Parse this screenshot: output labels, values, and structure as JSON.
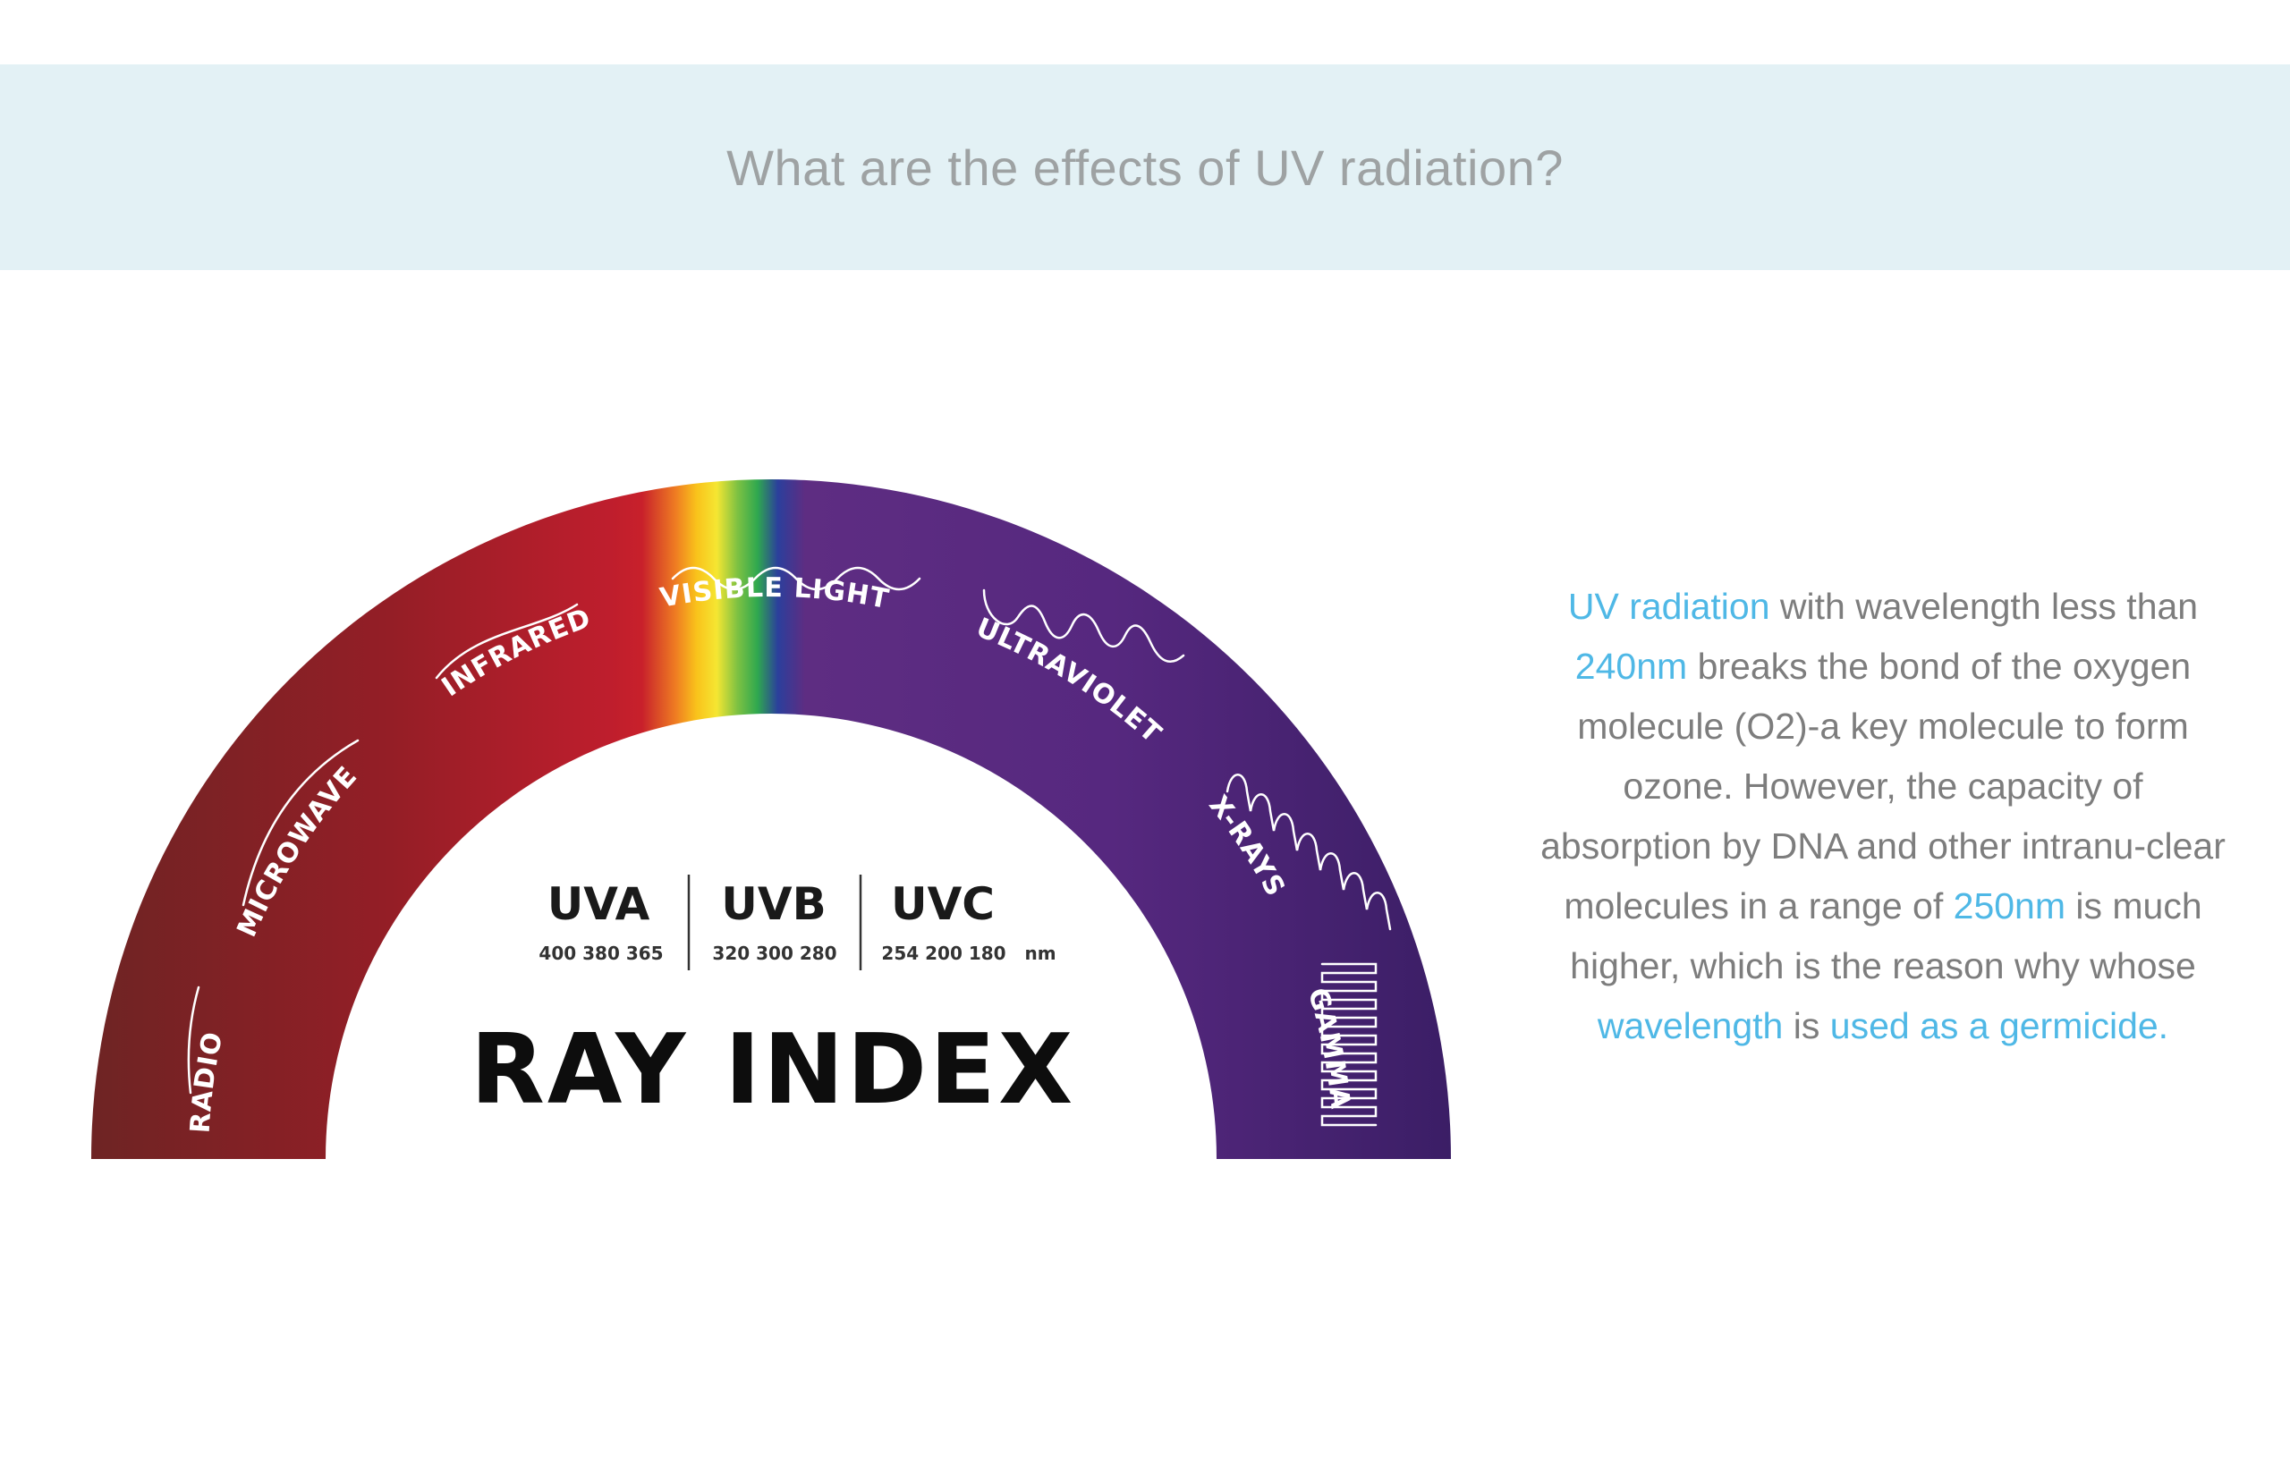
{
  "header": {
    "title": "What are the effects of UV radiation?"
  },
  "diagram": {
    "title": "RAY INDEX",
    "bands": {
      "radio": "RADIO",
      "microwave": "MICROWAVE",
      "infrared": "INFRARED",
      "visible": "VISIBLE LIGHT",
      "ultraviolet": "ULTRAVIOLET",
      "xrays": "X-RAYS",
      "gamma": "GAMMA"
    },
    "uv_groups": [
      {
        "name": "UVA",
        "values": "400  380  365"
      },
      {
        "name": "UVB",
        "values": "320 300 280"
      },
      {
        "name": "UVC",
        "values": "254 200 180"
      }
    ],
    "unit": "nm",
    "colors": {
      "radio": "#6e2424",
      "infrared": "#be1e2d",
      "ultraviolet": "#5e2d82",
      "gamma": "#3b1e66"
    }
  },
  "description": {
    "part1": "UV radiation",
    "part2": " with wavelength less than ",
    "part3": "240nm",
    "part4": " breaks the bond of the oxygen molecule (O2)-a key molecule to form ozone. However, the capacity of absorption by DNA and other intranu-clear molecules in a range of ",
    "part5": "250nm",
    "part6": " is much higher, which is the reason why whose ",
    "part7": "wavelength",
    "part8": " is ",
    "part9": "used as a germicide."
  },
  "colors": {
    "accent": "#4fb8e6",
    "body_text": "#7d7d7d",
    "banner_bg": "#e3f1f5"
  }
}
